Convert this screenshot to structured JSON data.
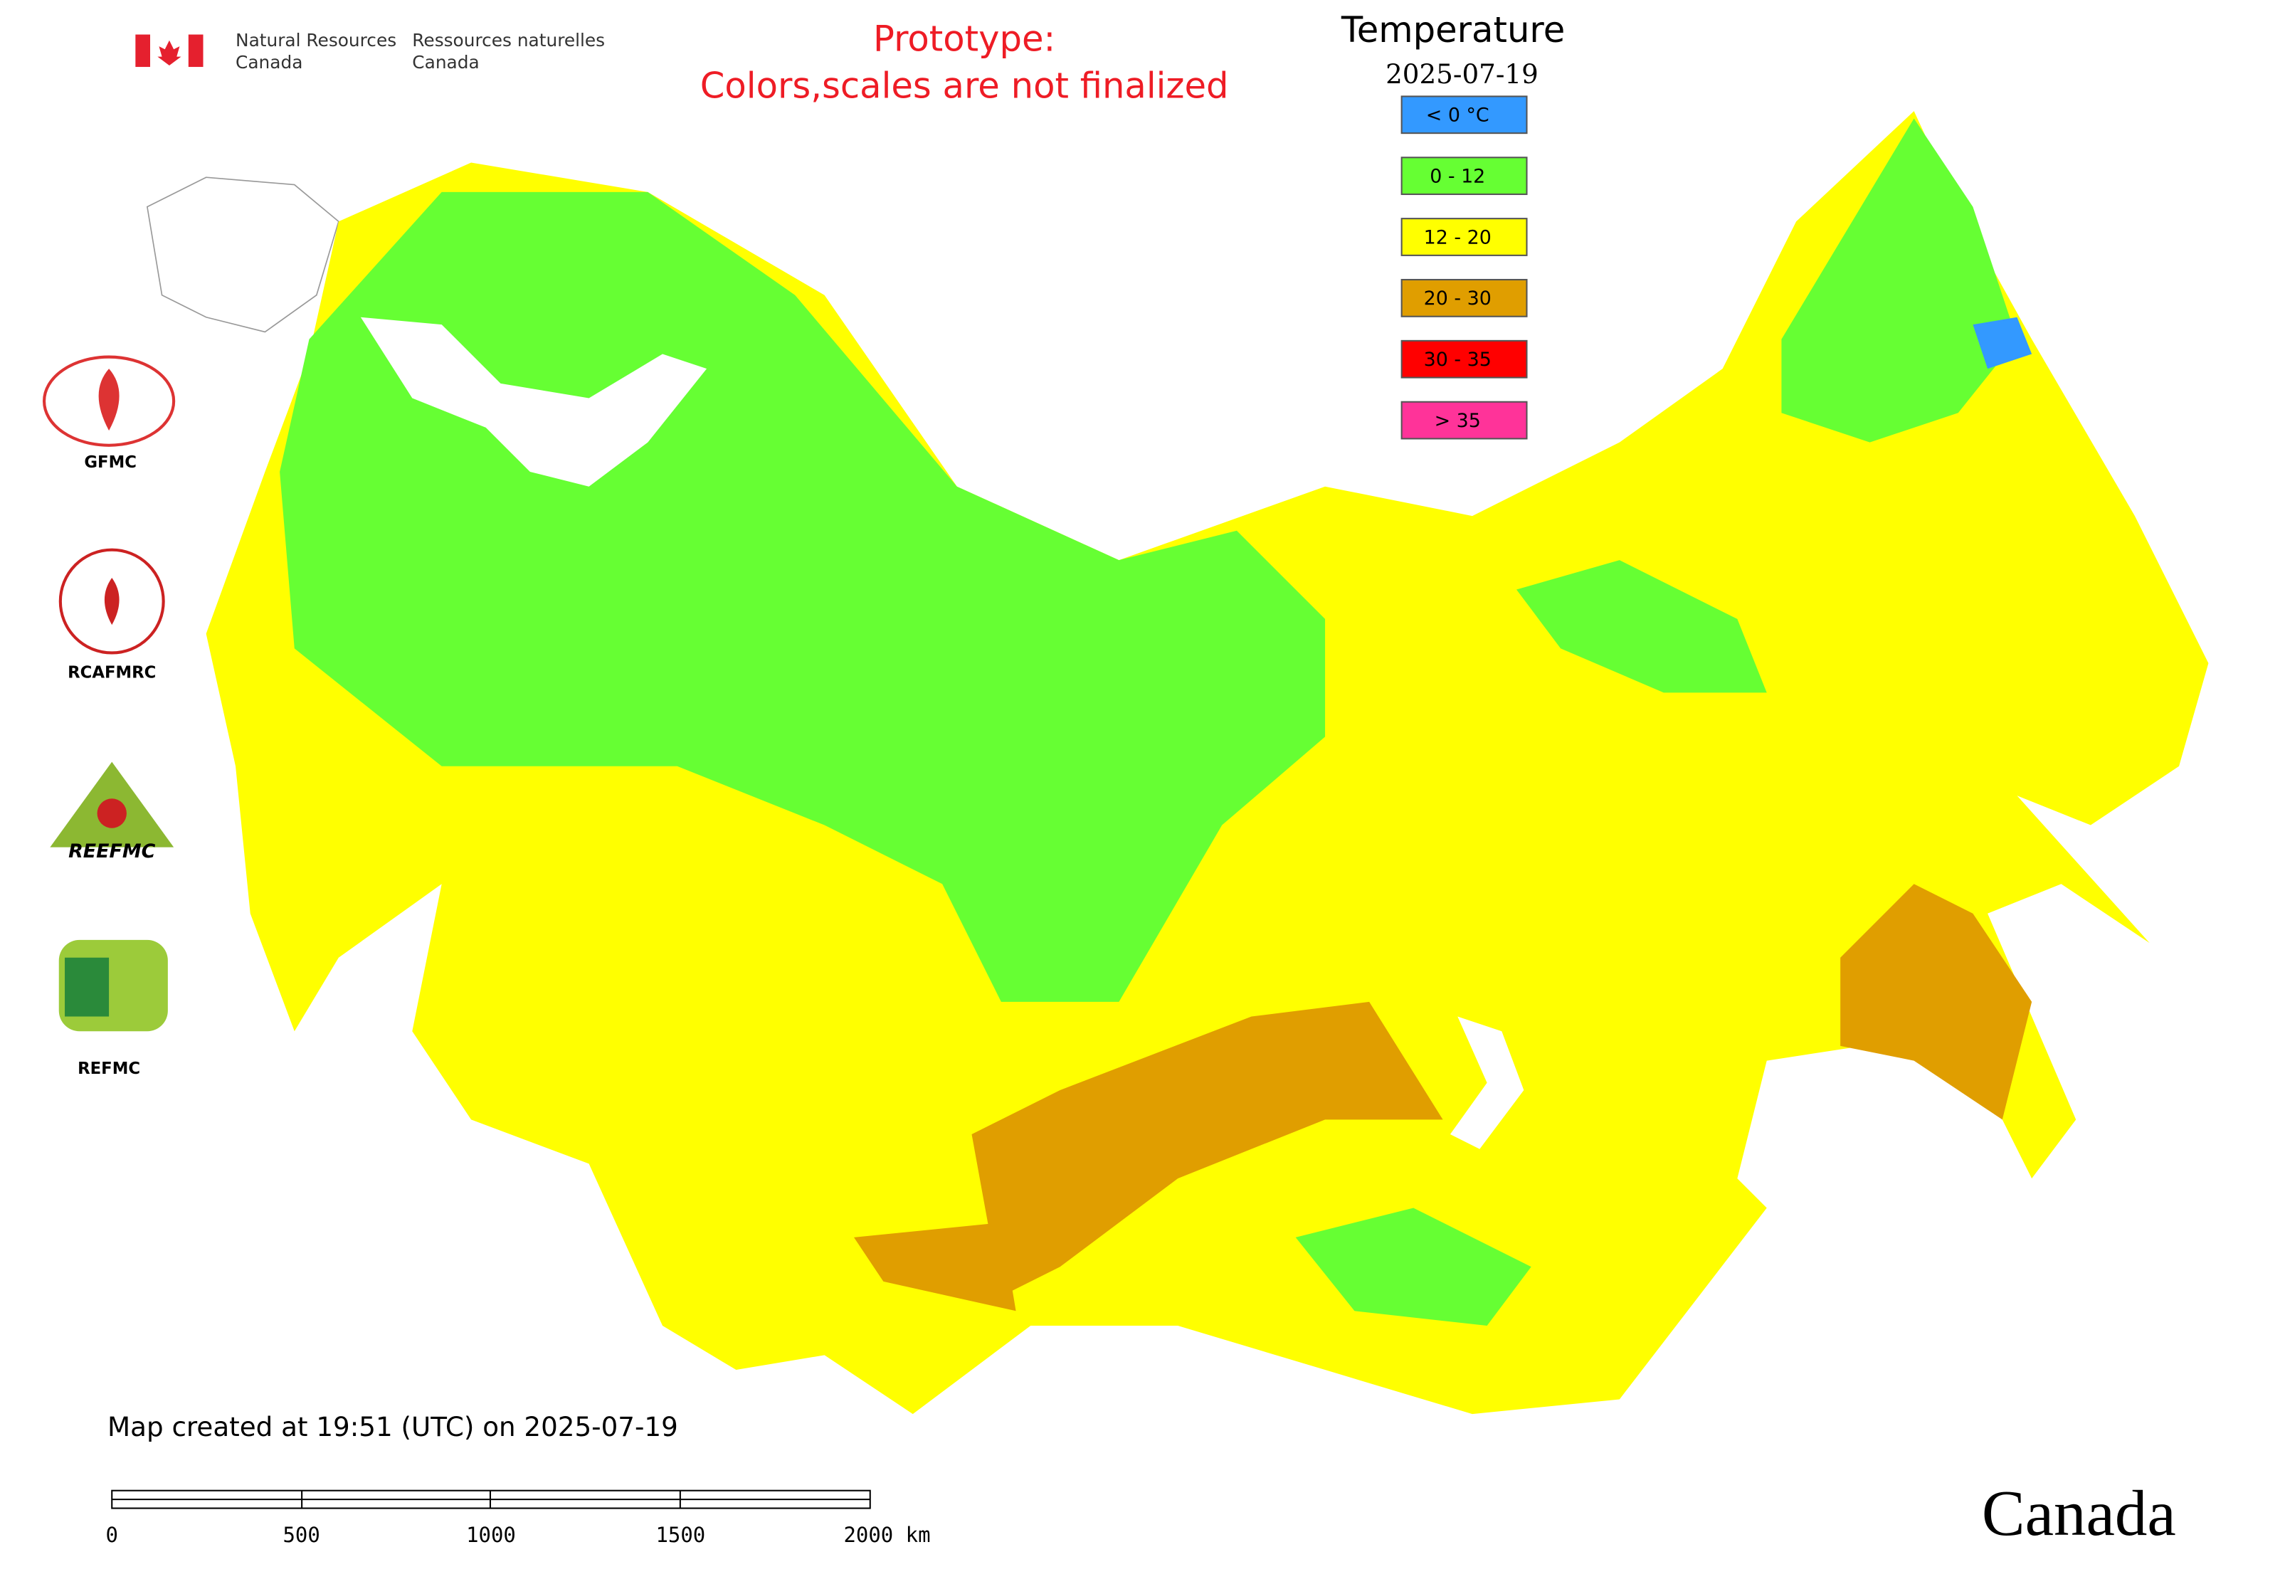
{
  "header": {
    "agency_en_line1": "Natural Resources",
    "agency_en_line2": "Canada",
    "agency_fr_line1": "Ressources naturelles",
    "agency_fr_line2": "Canada"
  },
  "notice": {
    "line1": "Prototype:",
    "line2": "Colors,scales are not finalized"
  },
  "legend": {
    "title": "Temperature",
    "date": "2025-07-19",
    "items": [
      {
        "label": "< 0 °C",
        "color": "#3399ff"
      },
      {
        "label": "0 - 12",
        "color": "#66ff33"
      },
      {
        "label": "12 - 20",
        "color": "#ffff00"
      },
      {
        "label": "20 - 30",
        "color": "#e09e00"
      },
      {
        "label": "30 - 35",
        "color": "#ff0000"
      },
      {
        "label": "> 35",
        "color": "#ff3399"
      }
    ]
  },
  "logos": [
    "GFMC",
    "RCAFMRC",
    "REEFMC",
    "REFMC"
  ],
  "footer": {
    "created": "Map created at 19:51 (UTC) on 2025-07-19",
    "scale_labels": [
      "0",
      "500",
      "1000",
      "1500",
      "2000 km"
    ],
    "wordmark": "Canada"
  }
}
